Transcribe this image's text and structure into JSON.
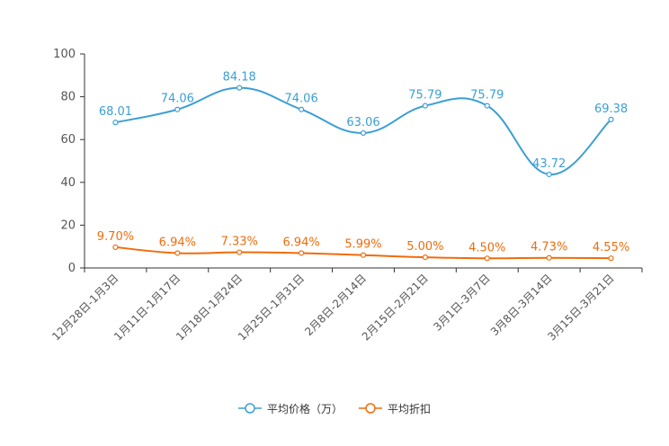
{
  "chart_data": {
    "type": "line",
    "categories": [
      "12月28日-1月3日",
      "1月11日-1月17日",
      "1月18日-1月24日",
      "1月25日-1月31日",
      "2月8日-2月14日",
      "2月15日-2月21日",
      "3月1日-3月7日",
      "3月8日-3月14日",
      "3月15日-3月21日"
    ],
    "ylim": [
      0,
      100
    ],
    "yticks": [
      0,
      20,
      40,
      60,
      80,
      100
    ],
    "series": [
      {
        "name": "平均价格（万）",
        "color": "#3b9fd4",
        "values": [
          68.01,
          74.06,
          84.18,
          74.06,
          63.06,
          75.79,
          75.79,
          43.72,
          69.38
        ],
        "labels": [
          "68.01",
          "74.06",
          "84.18",
          "74.06",
          "63.06",
          "75.79",
          "75.79",
          "43.72",
          "69.38"
        ]
      },
      {
        "name": "平均折扣",
        "color": "#f06c0c",
        "values": [
          9.7,
          6.94,
          7.33,
          6.94,
          5.99,
          5.0,
          4.5,
          4.73,
          4.55
        ],
        "labels": [
          "9.70%",
          "6.94%",
          "7.33%",
          "6.94%",
          "5.99%",
          "5.00%",
          "4.50%",
          "4.73%",
          "4.55%"
        ]
      }
    ],
    "legend_position": "bottom"
  }
}
